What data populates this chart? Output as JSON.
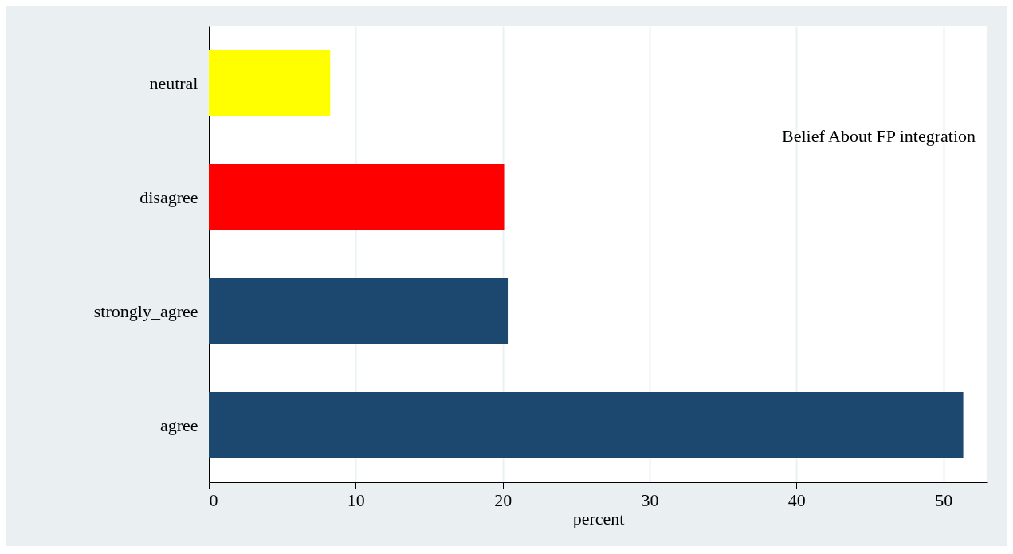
{
  "chart_data": {
    "type": "bar",
    "orientation": "horizontal",
    "categories": [
      "neutral",
      "disagree",
      "strongly_agree",
      "agree"
    ],
    "values": [
      8.26,
      20.1,
      20.4,
      51.35
    ],
    "colors": [
      "#ffff00",
      "#ff0000",
      "#1c476f",
      "#1c476f"
    ],
    "xlabel": "percent",
    "xlim": [
      0,
      53
    ],
    "xticks": [
      0,
      10,
      20,
      30,
      40,
      50
    ],
    "grid": "x",
    "annotations": [
      "Belief About FP integration"
    ]
  }
}
